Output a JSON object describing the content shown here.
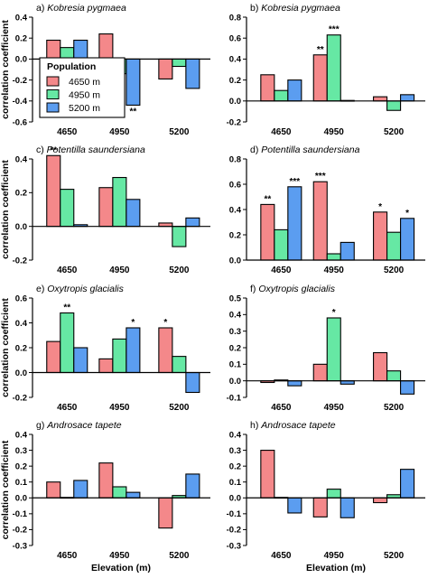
{
  "colors": {
    "4650 m": "#f4888a",
    "4950 m": "#66e8a4",
    "5200 m": "#5b9df0",
    "axis": "#000000"
  },
  "figure": {
    "xlabel": "Elevation (m)",
    "ylabel": "correlation coefficient"
  },
  "legend": {
    "title": "Population",
    "entries": [
      "4650 m",
      "4950 m",
      "5200 m"
    ],
    "placement": "inside panel a, left"
  },
  "chart_data": [
    {
      "id": "a",
      "type": "bar",
      "title_letter": "a)",
      "title_species": "Kobresia pygmaea",
      "categories": [
        "4650",
        "4950",
        "5200"
      ],
      "ylim": [
        -0.6,
        0.4
      ],
      "yticks": [
        -0.6,
        -0.4,
        -0.2,
        0.0,
        0.2,
        0.4
      ],
      "ytick_labels": [
        "-0.6",
        "-0.4",
        "-0.2",
        "0.0",
        "0.2",
        "0.4"
      ],
      "series": [
        {
          "name": "4650 m",
          "values": [
            0.18,
            0.24,
            -0.19
          ],
          "stars": [
            "",
            "",
            ""
          ]
        },
        {
          "name": "4950 m",
          "values": [
            0.11,
            -0.14,
            -0.07
          ],
          "stars": [
            "",
            "",
            ""
          ]
        },
        {
          "name": "5200 m",
          "values": [
            0.18,
            -0.44,
            -0.28
          ],
          "stars": [
            "",
            "**",
            ""
          ]
        }
      ]
    },
    {
      "id": "b",
      "type": "bar",
      "title_letter": "b)",
      "title_species": "Kobresia pygmaea",
      "categories": [
        "4650",
        "4950",
        "5200"
      ],
      "ylim": [
        -0.2,
        0.8
      ],
      "yticks": [
        -0.2,
        0.0,
        0.2,
        0.4,
        0.6,
        0.8
      ],
      "ytick_labels": [
        "-0.2",
        "0.0",
        "0.2",
        "0.4",
        "0.6",
        "0.8"
      ],
      "series": [
        {
          "name": "4650 m",
          "values": [
            0.25,
            0.44,
            0.04
          ],
          "stars": [
            "",
            "**",
            ""
          ]
        },
        {
          "name": "4950 m",
          "values": [
            0.1,
            0.63,
            -0.09
          ],
          "stars": [
            "",
            "***",
            ""
          ]
        },
        {
          "name": "5200 m",
          "values": [
            0.2,
            0.005,
            0.06
          ],
          "stars": [
            "",
            "",
            ""
          ]
        }
      ]
    },
    {
      "id": "c",
      "type": "bar",
      "title_letter": "c)",
      "title_species": "Potentilla saundersiana",
      "categories": [
        "4650",
        "4950",
        "5200"
      ],
      "ylim": [
        -0.2,
        0.4
      ],
      "yticks": [
        -0.2,
        0.0,
        0.2,
        0.4
      ],
      "ytick_labels": [
        "-0.2",
        "0.0",
        "0.2",
        "0.4"
      ],
      "series": [
        {
          "name": "4650 m",
          "values": [
            0.42,
            0.23,
            0.02
          ],
          "stars": [
            "**",
            "",
            ""
          ]
        },
        {
          "name": "4950 m",
          "values": [
            0.22,
            0.29,
            -0.12
          ],
          "stars": [
            "",
            "",
            ""
          ]
        },
        {
          "name": "5200 m",
          "values": [
            0.01,
            0.16,
            0.05
          ],
          "stars": [
            "",
            "",
            ""
          ]
        }
      ]
    },
    {
      "id": "d",
      "type": "bar",
      "title_letter": "d)",
      "title_species": "Potentilla saundersiana",
      "categories": [
        "4650",
        "4950",
        "5200"
      ],
      "ylim": [
        0.0,
        0.8
      ],
      "yticks": [
        0.0,
        0.2,
        0.4,
        0.6,
        0.8
      ],
      "ytick_labels": [
        "0.0",
        "0.2",
        "0.4",
        "0.6",
        "0.8"
      ],
      "series": [
        {
          "name": "4650 m",
          "values": [
            0.44,
            0.62,
            0.38
          ],
          "stars": [
            "**",
            "***",
            "*"
          ]
        },
        {
          "name": "4950 m",
          "values": [
            0.24,
            0.05,
            0.22
          ],
          "stars": [
            "",
            "",
            ""
          ]
        },
        {
          "name": "5200 m",
          "values": [
            0.58,
            0.14,
            0.33
          ],
          "stars": [
            "***",
            "",
            "*"
          ]
        }
      ]
    },
    {
      "id": "e",
      "type": "bar",
      "title_letter": "e)",
      "title_species": "Oxytropis glacialis",
      "categories": [
        "4650",
        "4950",
        "5200"
      ],
      "ylim": [
        -0.2,
        0.6
      ],
      "yticks": [
        -0.2,
        0.0,
        0.2,
        0.4,
        0.6
      ],
      "ytick_labels": [
        "-0.2",
        "0.0",
        "0.2",
        "0.4",
        "0.6"
      ],
      "series": [
        {
          "name": "4650 m",
          "values": [
            0.25,
            0.11,
            0.36
          ],
          "stars": [
            "",
            "",
            "*"
          ]
        },
        {
          "name": "4950 m",
          "values": [
            0.48,
            0.27,
            0.13
          ],
          "stars": [
            "**",
            "",
            ""
          ]
        },
        {
          "name": "5200 m",
          "values": [
            0.2,
            0.36,
            -0.16
          ],
          "stars": [
            "",
            "*",
            ""
          ]
        }
      ]
    },
    {
      "id": "f",
      "type": "bar",
      "title_letter": "f)",
      "title_species": "Oxytropis glacialis",
      "categories": [
        "4650",
        "4950",
        "5200"
      ],
      "ylim": [
        -0.1,
        0.5
      ],
      "yticks": [
        -0.1,
        0.0,
        0.1,
        0.2,
        0.3,
        0.4,
        0.5
      ],
      "ytick_labels": [
        "-0.1",
        "0.0",
        "0.1",
        "0.2",
        "0.3",
        "0.4",
        "0.5"
      ],
      "series": [
        {
          "name": "4650 m",
          "values": [
            -0.01,
            0.1,
            0.17
          ],
          "stars": [
            "",
            "",
            ""
          ]
        },
        {
          "name": "4950 m",
          "values": [
            0.005,
            0.38,
            0.06
          ],
          "stars": [
            "",
            "*",
            ""
          ]
        },
        {
          "name": "5200 m",
          "values": [
            -0.03,
            -0.02,
            -0.08
          ],
          "stars": [
            "",
            "",
            ""
          ]
        }
      ]
    },
    {
      "id": "g",
      "type": "bar",
      "title_letter": "g)",
      "title_species": "Androsace tapete",
      "categories": [
        "4650",
        "4950",
        "5200"
      ],
      "ylim": [
        -0.3,
        0.4
      ],
      "yticks": [
        -0.3,
        -0.2,
        -0.1,
        0.0,
        0.1,
        0.2,
        0.3,
        0.4
      ],
      "ytick_labels": [
        "-0.3",
        "-0.2",
        "-0.1",
        "0.0",
        "0.1",
        "0.2",
        "0.3",
        "0.4"
      ],
      "series": [
        {
          "name": "4650 m",
          "values": [
            0.1,
            0.22,
            -0.19
          ],
          "stars": [
            "",
            "",
            ""
          ]
        },
        {
          "name": "4950 m",
          "values": [
            0.003,
            0.07,
            0.015
          ],
          "stars": [
            "",
            "",
            ""
          ]
        },
        {
          "name": "5200 m",
          "values": [
            0.11,
            0.035,
            0.15
          ],
          "stars": [
            "",
            "",
            ""
          ]
        }
      ]
    },
    {
      "id": "h",
      "type": "bar",
      "title_letter": "h)",
      "title_species": "Androsace tapete",
      "categories": [
        "4650",
        "4950",
        "5200"
      ],
      "ylim": [
        -0.3,
        0.4
      ],
      "yticks": [
        -0.3,
        -0.2,
        -0.1,
        0.0,
        0.1,
        0.2,
        0.3,
        0.4
      ],
      "ytick_labels": [
        "-0.3",
        "-0.2",
        "-0.1",
        "0.0",
        "0.1",
        "0.2",
        "0.3",
        "0.4"
      ],
      "series": [
        {
          "name": "4650 m",
          "values": [
            0.3,
            -0.12,
            -0.03
          ],
          "stars": [
            "",
            "",
            ""
          ]
        },
        {
          "name": "4950 m",
          "values": [
            0.003,
            0.055,
            0.02
          ],
          "stars": [
            "",
            "",
            ""
          ]
        },
        {
          "name": "5200 m",
          "values": [
            -0.095,
            -0.125,
            0.18
          ],
          "stars": [
            "",
            "",
            ""
          ]
        }
      ]
    }
  ]
}
